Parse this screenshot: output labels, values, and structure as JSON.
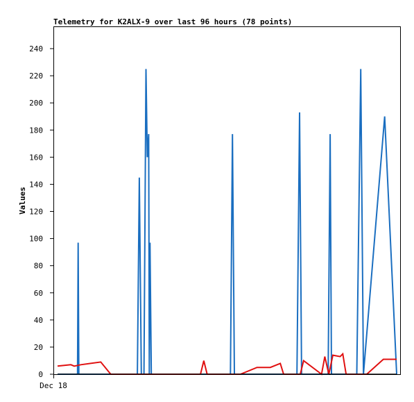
{
  "chart_data": {
    "type": "line",
    "title": "Telemetry for K2ALX-9 over last 96 hours (78 points)",
    "xlabel": "",
    "ylabel": "Values",
    "x_tick_labels": [
      "Dec 18"
    ],
    "ylim": [
      0,
      255
    ],
    "yticks": [
      0,
      20,
      40,
      60,
      80,
      100,
      120,
      140,
      160,
      180,
      200,
      220,
      240
    ],
    "grid": false,
    "legend": "none",
    "series": [
      {
        "color": "#1a6ec0",
        "points": [
          [
            0,
            0
          ],
          [
            30,
            0
          ],
          [
            31,
            97
          ],
          [
            32,
            0
          ],
          [
            120,
            0
          ],
          [
            123,
            145
          ],
          [
            126,
            0
          ],
          [
            130,
            0
          ],
          [
            133,
            225
          ],
          [
            135,
            160
          ],
          [
            137,
            177
          ],
          [
            138,
            0
          ],
          [
            139,
            97
          ],
          [
            141,
            0
          ],
          [
            260,
            0
          ],
          [
            263,
            177
          ],
          [
            266,
            0
          ],
          [
            360,
            0
          ],
          [
            364,
            193
          ],
          [
            367,
            0
          ],
          [
            407,
            0
          ],
          [
            410,
            177
          ],
          [
            412,
            0
          ],
          [
            450,
            0
          ],
          [
            456,
            225
          ],
          [
            460,
            0
          ],
          [
            492,
            190
          ],
          [
            510,
            0
          ]
        ]
      },
      {
        "color": "#e01010",
        "points": [
          [
            0,
            6
          ],
          [
            20,
            7
          ],
          [
            25,
            6
          ],
          [
            35,
            7
          ],
          [
            65,
            9
          ],
          [
            80,
            0
          ],
          [
            215,
            0
          ],
          [
            220,
            10
          ],
          [
            225,
            0
          ],
          [
            275,
            0
          ],
          [
            300,
            5
          ],
          [
            320,
            5
          ],
          [
            335,
            8
          ],
          [
            340,
            0
          ],
          [
            365,
            0
          ],
          [
            370,
            10
          ],
          [
            397,
            0
          ],
          [
            402,
            13
          ],
          [
            408,
            0
          ],
          [
            414,
            14
          ],
          [
            425,
            13
          ],
          [
            429,
            15
          ],
          [
            434,
            0
          ],
          [
            465,
            0
          ],
          [
            490,
            11
          ],
          [
            510,
            11
          ]
        ]
      },
      {
        "color": "#000000",
        "points": [
          [
            0,
            0
          ],
          [
            510,
            0
          ]
        ]
      }
    ]
  }
}
